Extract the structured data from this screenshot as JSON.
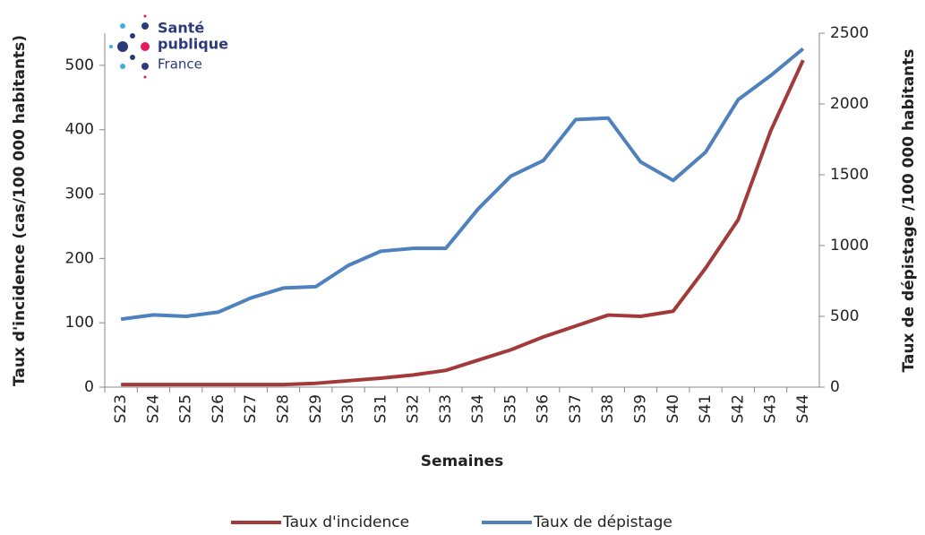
{
  "logo": {
    "line1": "Santé",
    "line2": "publique",
    "line3": "France"
  },
  "chart_data": {
    "type": "line",
    "x_label": "Semaines",
    "y_label": "Taux d'incidence (cas/100 000 habitants)",
    "y2_label": "Taux de dépistage /100 000 habitants",
    "categories": [
      "S23",
      "S24",
      "S25",
      "S26",
      "S27",
      "S28",
      "S29",
      "S30",
      "S31",
      "S32",
      "S33",
      "S34",
      "S35",
      "S36",
      "S37",
      "S38",
      "S39",
      "S40",
      "S41",
      "S42",
      "S43",
      "S44"
    ],
    "series": [
      {
        "name": "Taux d'incidence",
        "color": "#a33a3a",
        "values": [
          4,
          4,
          4,
          4,
          4,
          4,
          6,
          10,
          14,
          19,
          26,
          42,
          58,
          78,
          95,
          112,
          110,
          118,
          185,
          260,
          398,
          508
        ]
      },
      {
        "name": "Taux de dépistage",
        "color": "#4f81bd",
        "axis": "y2",
        "values": [
          480,
          510,
          500,
          530,
          630,
          700,
          710,
          860,
          960,
          980,
          980,
          1260,
          1490,
          1600,
          1890,
          1900,
          1590,
          1460,
          1660,
          2030,
          2200,
          2390
        ]
      }
    ],
    "ylim": [
      0,
      550
    ],
    "yticks": [
      0,
      100,
      200,
      300,
      400,
      500
    ],
    "y2lim": [
      0,
      2500
    ],
    "y2ticks": [
      0,
      500,
      1000,
      1500,
      2000,
      2500
    ],
    "legend": "bottom"
  }
}
